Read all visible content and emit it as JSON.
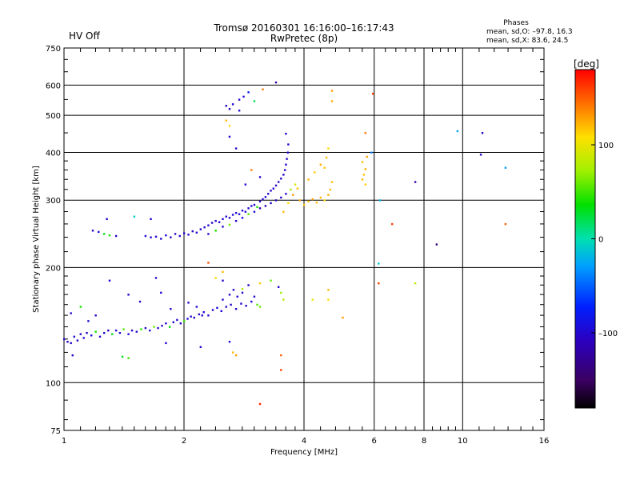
{
  "status_label": "HV Off",
  "header": {
    "title_line1": "Tromsø 20160301 16:16:00–16:17:43",
    "title_line2": "RwPretec (8p)"
  },
  "phases_box": {
    "heading": "Phases",
    "line_o": "mean, sd,O: –97.8, 16.3",
    "line_x": "mean, sd,X:  83.6, 24.5"
  },
  "colorbar": {
    "label": "[deg]",
    "ticks": [
      "100",
      "0",
      "–100"
    ],
    "range": [
      -180,
      180
    ]
  },
  "chart_data": {
    "type": "scatter",
    "xlabel": "Frequency [MHz]",
    "ylabel": "Stationary phase Virtual Height [km]",
    "xscale": "log",
    "yscale": "log",
    "xlim": [
      1,
      16
    ],
    "ylim": [
      75,
      750
    ],
    "x_ticks": [
      "1",
      "2",
      "4",
      "6",
      "8",
      "10",
      "16"
    ],
    "y_ticks": [
      "75",
      "100",
      "200",
      "300",
      "400",
      "500",
      "600",
      "750"
    ],
    "grid": true,
    "points_compact_note_free": true,
    "points": [
      [
        1.0,
        130,
        -100
      ],
      [
        1.02,
        128,
        -105
      ],
      [
        1.04,
        127,
        -98
      ],
      [
        1.06,
        132,
        -95
      ],
      [
        1.08,
        129,
        -102
      ],
      [
        1.1,
        134,
        -100
      ],
      [
        1.12,
        131,
        -96
      ],
      [
        1.14,
        135,
        -105
      ],
      [
        1.17,
        133,
        -92
      ],
      [
        1.2,
        136,
        40
      ],
      [
        1.23,
        132,
        -100
      ],
      [
        1.26,
        135,
        -95
      ],
      [
        1.29,
        137,
        -104
      ],
      [
        1.32,
        134,
        30
      ],
      [
        1.35,
        137,
        -98
      ],
      [
        1.38,
        135,
        -100
      ],
      [
        1.41,
        138,
        55
      ],
      [
        1.45,
        134,
        -96
      ],
      [
        1.48,
        137,
        -102
      ],
      [
        1.52,
        136,
        -100
      ],
      [
        1.56,
        138,
        45
      ],
      [
        1.6,
        139,
        -99
      ],
      [
        1.64,
        137,
        -95
      ],
      [
        1.68,
        140,
        60
      ],
      [
        1.72,
        139,
        -100
      ],
      [
        1.76,
        141,
        -97
      ],
      [
        1.8,
        143,
        -103
      ],
      [
        1.84,
        140,
        35
      ],
      [
        1.88,
        144,
        -100
      ],
      [
        1.92,
        146,
        -98
      ],
      [
        1.96,
        143,
        -101
      ],
      [
        2.0,
        145,
        50
      ],
      [
        2.04,
        147,
        -96
      ],
      [
        2.08,
        149,
        -100
      ],
      [
        2.12,
        148,
        -104
      ],
      [
        2.18,
        151,
        -99
      ],
      [
        2.24,
        153,
        -97
      ],
      [
        2.3,
        150,
        -102
      ],
      [
        2.36,
        155,
        -100
      ],
      [
        2.42,
        157,
        -96
      ],
      [
        2.48,
        154,
        -101
      ],
      [
        2.55,
        158,
        -98
      ],
      [
        2.62,
        160,
        -100
      ],
      [
        2.7,
        156,
        -103
      ],
      [
        2.78,
        161,
        -97
      ],
      [
        2.86,
        159,
        -100
      ],
      [
        2.95,
        163,
        -96
      ],
      [
        3.05,
        160,
        55
      ],
      [
        3.1,
        158,
        60
      ],
      [
        1.04,
        152,
        -100
      ],
      [
        1.1,
        158,
        40
      ],
      [
        1.15,
        145,
        -95
      ],
      [
        1.2,
        150,
        -100
      ],
      [
        1.45,
        170,
        -98
      ],
      [
        1.55,
        163,
        -102
      ],
      [
        1.75,
        172,
        -100
      ],
      [
        1.85,
        156,
        -96
      ],
      [
        2.05,
        162,
        -100
      ],
      [
        2.15,
        158,
        -95
      ],
      [
        2.22,
        150,
        -102
      ],
      [
        2.5,
        165,
        -98
      ],
      [
        2.6,
        170,
        -100
      ],
      [
        2.66,
        175,
        -97
      ],
      [
        2.72,
        168,
        -101
      ],
      [
        2.8,
        172,
        -100
      ],
      [
        3.0,
        168,
        -99
      ],
      [
        3.3,
        185,
        60
      ],
      [
        3.45,
        178,
        -100
      ],
      [
        3.5,
        172,
        70
      ],
      [
        3.55,
        165,
        80
      ],
      [
        4.6,
        175,
        120
      ],
      [
        4.6,
        165,
        110
      ],
      [
        4.2,
        165,
        100
      ],
      [
        5.0,
        148,
        130
      ],
      [
        2.5,
        195,
        120
      ],
      [
        2.4,
        188,
        110
      ],
      [
        3.1,
        182,
        115
      ],
      [
        2.9,
        180,
        -100
      ],
      [
        2.8,
        176,
        75
      ],
      [
        1.05,
        118,
        -100
      ],
      [
        1.4,
        117,
        30
      ],
      [
        1.45,
        116,
        50
      ],
      [
        1.8,
        127,
        -100
      ],
      [
        2.2,
        124,
        -100
      ],
      [
        2.6,
        128,
        -95
      ],
      [
        2.65,
        120,
        120
      ],
      [
        2.7,
        118,
        130
      ],
      [
        3.5,
        118,
        150
      ],
      [
        3.5,
        108,
        160
      ],
      [
        3.1,
        88,
        170
      ],
      [
        1.3,
        185,
        -100
      ],
      [
        1.7,
        188,
        -100
      ],
      [
        2.3,
        206,
        155
      ],
      [
        2.5,
        185,
        -100
      ],
      [
        1.6,
        242,
        -100
      ],
      [
        1.65,
        240,
        -98
      ],
      [
        1.7,
        241,
        -102
      ],
      [
        1.75,
        238,
        -100
      ],
      [
        1.8,
        243,
        -95
      ],
      [
        1.85,
        240,
        -101
      ],
      [
        1.9,
        245,
        -99
      ],
      [
        1.95,
        242,
        -100
      ],
      [
        2.0,
        246,
        -97
      ],
      [
        2.05,
        244,
        -102
      ],
      [
        2.1,
        249,
        -100
      ],
      [
        2.15,
        247,
        -96
      ],
      [
        2.2,
        252,
        -100
      ],
      [
        2.25,
        255,
        -98
      ],
      [
        2.3,
        258,
        -101
      ],
      [
        2.35,
        262,
        -100
      ],
      [
        2.4,
        265,
        -97
      ],
      [
        2.45,
        263,
        -102
      ],
      [
        2.5,
        268,
        -100
      ],
      [
        2.55,
        272,
        -99
      ],
      [
        2.6,
        270,
        -100
      ],
      [
        2.65,
        275,
        -96
      ],
      [
        2.7,
        278,
        -101
      ],
      [
        2.75,
        276,
        -100
      ],
      [
        2.8,
        282,
        -98
      ],
      [
        2.85,
        280,
        -100
      ],
      [
        2.9,
        286,
        -102
      ],
      [
        2.95,
        290,
        -100
      ],
      [
        3.0,
        292,
        -97
      ],
      [
        3.05,
        288,
        40
      ],
      [
        3.1,
        298,
        -100
      ],
      [
        3.15,
        302,
        -101
      ],
      [
        3.2,
        306,
        -100
      ],
      [
        3.25,
        312,
        -98
      ],
      [
        3.3,
        318,
        -100
      ],
      [
        3.35,
        322,
        -102
      ],
      [
        3.4,
        328,
        -100
      ],
      [
        3.45,
        335,
        -97
      ],
      [
        3.5,
        342,
        -100
      ],
      [
        3.55,
        350,
        -101
      ],
      [
        3.58,
        360,
        -100
      ],
      [
        3.6,
        372,
        -98
      ],
      [
        3.62,
        385,
        -100
      ],
      [
        3.64,
        400,
        -102
      ],
      [
        3.65,
        420,
        -100
      ],
      [
        3.6,
        448,
        -110
      ],
      [
        2.3,
        245,
        -100
      ],
      [
        2.4,
        250,
        40
      ],
      [
        2.5,
        256,
        -98
      ],
      [
        2.6,
        259,
        60
      ],
      [
        2.7,
        265,
        -100
      ],
      [
        2.8,
        270,
        -95
      ],
      [
        2.9,
        276,
        55
      ],
      [
        3.0,
        280,
        -100
      ],
      [
        3.1,
        286,
        -120
      ],
      [
        3.2,
        290,
        -115
      ],
      [
        3.3,
        295,
        -100
      ],
      [
        3.4,
        300,
        -110
      ],
      [
        3.5,
        305,
        -100
      ],
      [
        3.6,
        312,
        -100
      ],
      [
        3.7,
        320,
        70
      ],
      [
        3.8,
        330,
        90
      ],
      [
        3.55,
        280,
        120
      ],
      [
        3.65,
        295,
        110
      ],
      [
        3.75,
        310,
        130
      ],
      [
        3.85,
        322,
        120
      ],
      [
        3.9,
        300,
        125
      ],
      [
        4.0,
        292,
        115
      ],
      [
        4.1,
        298,
        120
      ],
      [
        4.2,
        302,
        130
      ],
      [
        4.3,
        296,
        118
      ],
      [
        4.4,
        305,
        122
      ],
      [
        4.5,
        300,
        110
      ],
      [
        4.6,
        310,
        125
      ],
      [
        4.65,
        320,
        120
      ],
      [
        4.7,
        335,
        118
      ],
      [
        4.1,
        340,
        122
      ],
      [
        4.25,
        355,
        115
      ],
      [
        4.4,
        372,
        125
      ],
      [
        4.55,
        388,
        120
      ],
      [
        4.6,
        410,
        110
      ],
      [
        4.5,
        365,
        118
      ],
      [
        5.6,
        340,
        122
      ],
      [
        5.65,
        350,
        118
      ],
      [
        5.7,
        362,
        125
      ],
      [
        5.6,
        378,
        120
      ],
      [
        5.75,
        390,
        128
      ],
      [
        5.7,
        330,
        115
      ],
      [
        1.18,
        250,
        -100
      ],
      [
        1.22,
        248,
        -95
      ],
      [
        1.26,
        245,
        30
      ],
      [
        1.3,
        243,
        40
      ],
      [
        1.35,
        242,
        -100
      ],
      [
        1.28,
        268,
        -100
      ],
      [
        1.5,
        272,
        -10
      ],
      [
        1.65,
        268,
        -100
      ],
      [
        2.6,
        520,
        -100
      ],
      [
        2.55,
        530,
        -105
      ],
      [
        2.65,
        535,
        -98
      ],
      [
        2.75,
        550,
        -100
      ],
      [
        2.82,
        560,
        -97
      ],
      [
        2.9,
        575,
        -80
      ],
      [
        3.0,
        545,
        20
      ],
      [
        2.75,
        515,
        -100
      ],
      [
        3.15,
        585,
        140
      ],
      [
        3.4,
        610,
        -120
      ],
      [
        4.7,
        580,
        130
      ],
      [
        4.7,
        545,
        125
      ],
      [
        5.95,
        570,
        160
      ],
      [
        5.7,
        450,
        140
      ],
      [
        2.55,
        485,
        120
      ],
      [
        2.6,
        470,
        110
      ],
      [
        2.7,
        410,
        -100
      ],
      [
        2.6,
        440,
        -100
      ],
      [
        2.95,
        360,
        140
      ],
      [
        3.1,
        345,
        -100
      ],
      [
        2.85,
        330,
        -100
      ],
      [
        5.9,
        400,
        -40
      ],
      [
        6.2,
        300,
        -20
      ],
      [
        6.15,
        205,
        -10
      ],
      [
        6.65,
        260,
        160
      ],
      [
        7.6,
        335,
        -120
      ],
      [
        7.6,
        182,
        80
      ],
      [
        8.6,
        230,
        -140
      ],
      [
        9.7,
        455,
        -30
      ],
      [
        11.2,
        450,
        -110
      ],
      [
        11.1,
        395,
        -100
      ],
      [
        12.8,
        365,
        -30
      ],
      [
        12.8,
        260,
        150
      ],
      [
        6.15,
        182,
        160
      ]
    ]
  }
}
